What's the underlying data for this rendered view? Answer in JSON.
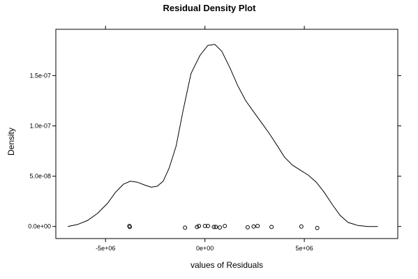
{
  "chart_data": {
    "type": "line",
    "title": "Residual Density Plot",
    "xlabel": "values of Residuals",
    "ylabel": "Density",
    "xlim": [
      -7500000,
      9700000
    ],
    "ylim": [
      -1.2e-08,
      1.96e-07
    ],
    "x_ticks": [
      {
        "value": -5000000,
        "label": "-5e+06"
      },
      {
        "value": 0,
        "label": "0e+00"
      },
      {
        "value": 5000000,
        "label": "5e+06"
      }
    ],
    "y_ticks": [
      {
        "value": 0,
        "label": "0.0e+00"
      },
      {
        "value": 5e-08,
        "label": "5.0e-08"
      },
      {
        "value": 1e-07,
        "label": "1.0e-07"
      },
      {
        "value": 1.5e-07,
        "label": "1.5e-07"
      }
    ],
    "grid": false,
    "series": [
      {
        "style": "line",
        "color": "#000000",
        "points": [
          [
            -6900000,
            0.0
          ],
          [
            -6400000,
            2e-09
          ],
          [
            -5900000,
            6e-09
          ],
          [
            -5400000,
            1.3e-08
          ],
          [
            -4900000,
            2.3e-08
          ],
          [
            -4500000,
            3.4e-08
          ],
          [
            -4100000,
            4.2e-08
          ],
          [
            -3750000,
            4.5e-08
          ],
          [
            -3400000,
            4.4e-08
          ],
          [
            -3000000,
            4.1e-08
          ],
          [
            -2700000,
            3.9e-08
          ],
          [
            -2400000,
            4e-08
          ],
          [
            -2100000,
            4.5e-08
          ],
          [
            -1800000,
            5.8e-08
          ],
          [
            -1450000,
            8e-08
          ],
          [
            -1100000,
            1.15e-07
          ],
          [
            -700000,
            1.52e-07
          ],
          [
            -250000,
            1.7e-07
          ],
          [
            150000,
            1.8e-07
          ],
          [
            500000,
            1.81e-07
          ],
          [
            850000,
            1.74e-07
          ],
          [
            1250000,
            1.58e-07
          ],
          [
            1650000,
            1.4e-07
          ],
          [
            2050000,
            1.25e-07
          ],
          [
            2450000,
            1.14e-07
          ],
          [
            2850000,
            1.03e-07
          ],
          [
            3250000,
            9.2e-08
          ],
          [
            3650000,
            8e-08
          ],
          [
            4000000,
            6.9e-08
          ],
          [
            4400000,
            6.1e-08
          ],
          [
            4800000,
            5.6e-08
          ],
          [
            5200000,
            5.1e-08
          ],
          [
            5600000,
            4.4e-08
          ],
          [
            6000000,
            3.4e-08
          ],
          [
            6400000,
            2.2e-08
          ],
          [
            6800000,
            1.1e-08
          ],
          [
            7200000,
            4e-09
          ],
          [
            7700000,
            1e-09
          ],
          [
            8200000,
            0.0
          ],
          [
            8700000,
            0.0
          ]
        ]
      },
      {
        "style": "points",
        "color": "#000000",
        "points": [
          [
            -3800000,
            5e-10
          ],
          [
            -3780000,
            -5e-10
          ],
          [
            -1000000,
            -1.2e-09
          ],
          [
            -400000,
            -5e-10
          ],
          [
            -300000,
            5e-10
          ],
          [
            0,
            5e-10
          ],
          [
            150000,
            5e-10
          ],
          [
            450000,
            -5e-10
          ],
          [
            550000,
            -5e-10
          ],
          [
            750000,
            -1e-09
          ],
          [
            1000000,
            5e-10
          ],
          [
            2150000,
            -8e-10
          ],
          [
            2450000,
            0.0
          ],
          [
            2650000,
            5e-10
          ],
          [
            3350000,
            -5e-10
          ],
          [
            4850000,
            0.0
          ],
          [
            5650000,
            -1.5e-09
          ]
        ]
      }
    ]
  }
}
